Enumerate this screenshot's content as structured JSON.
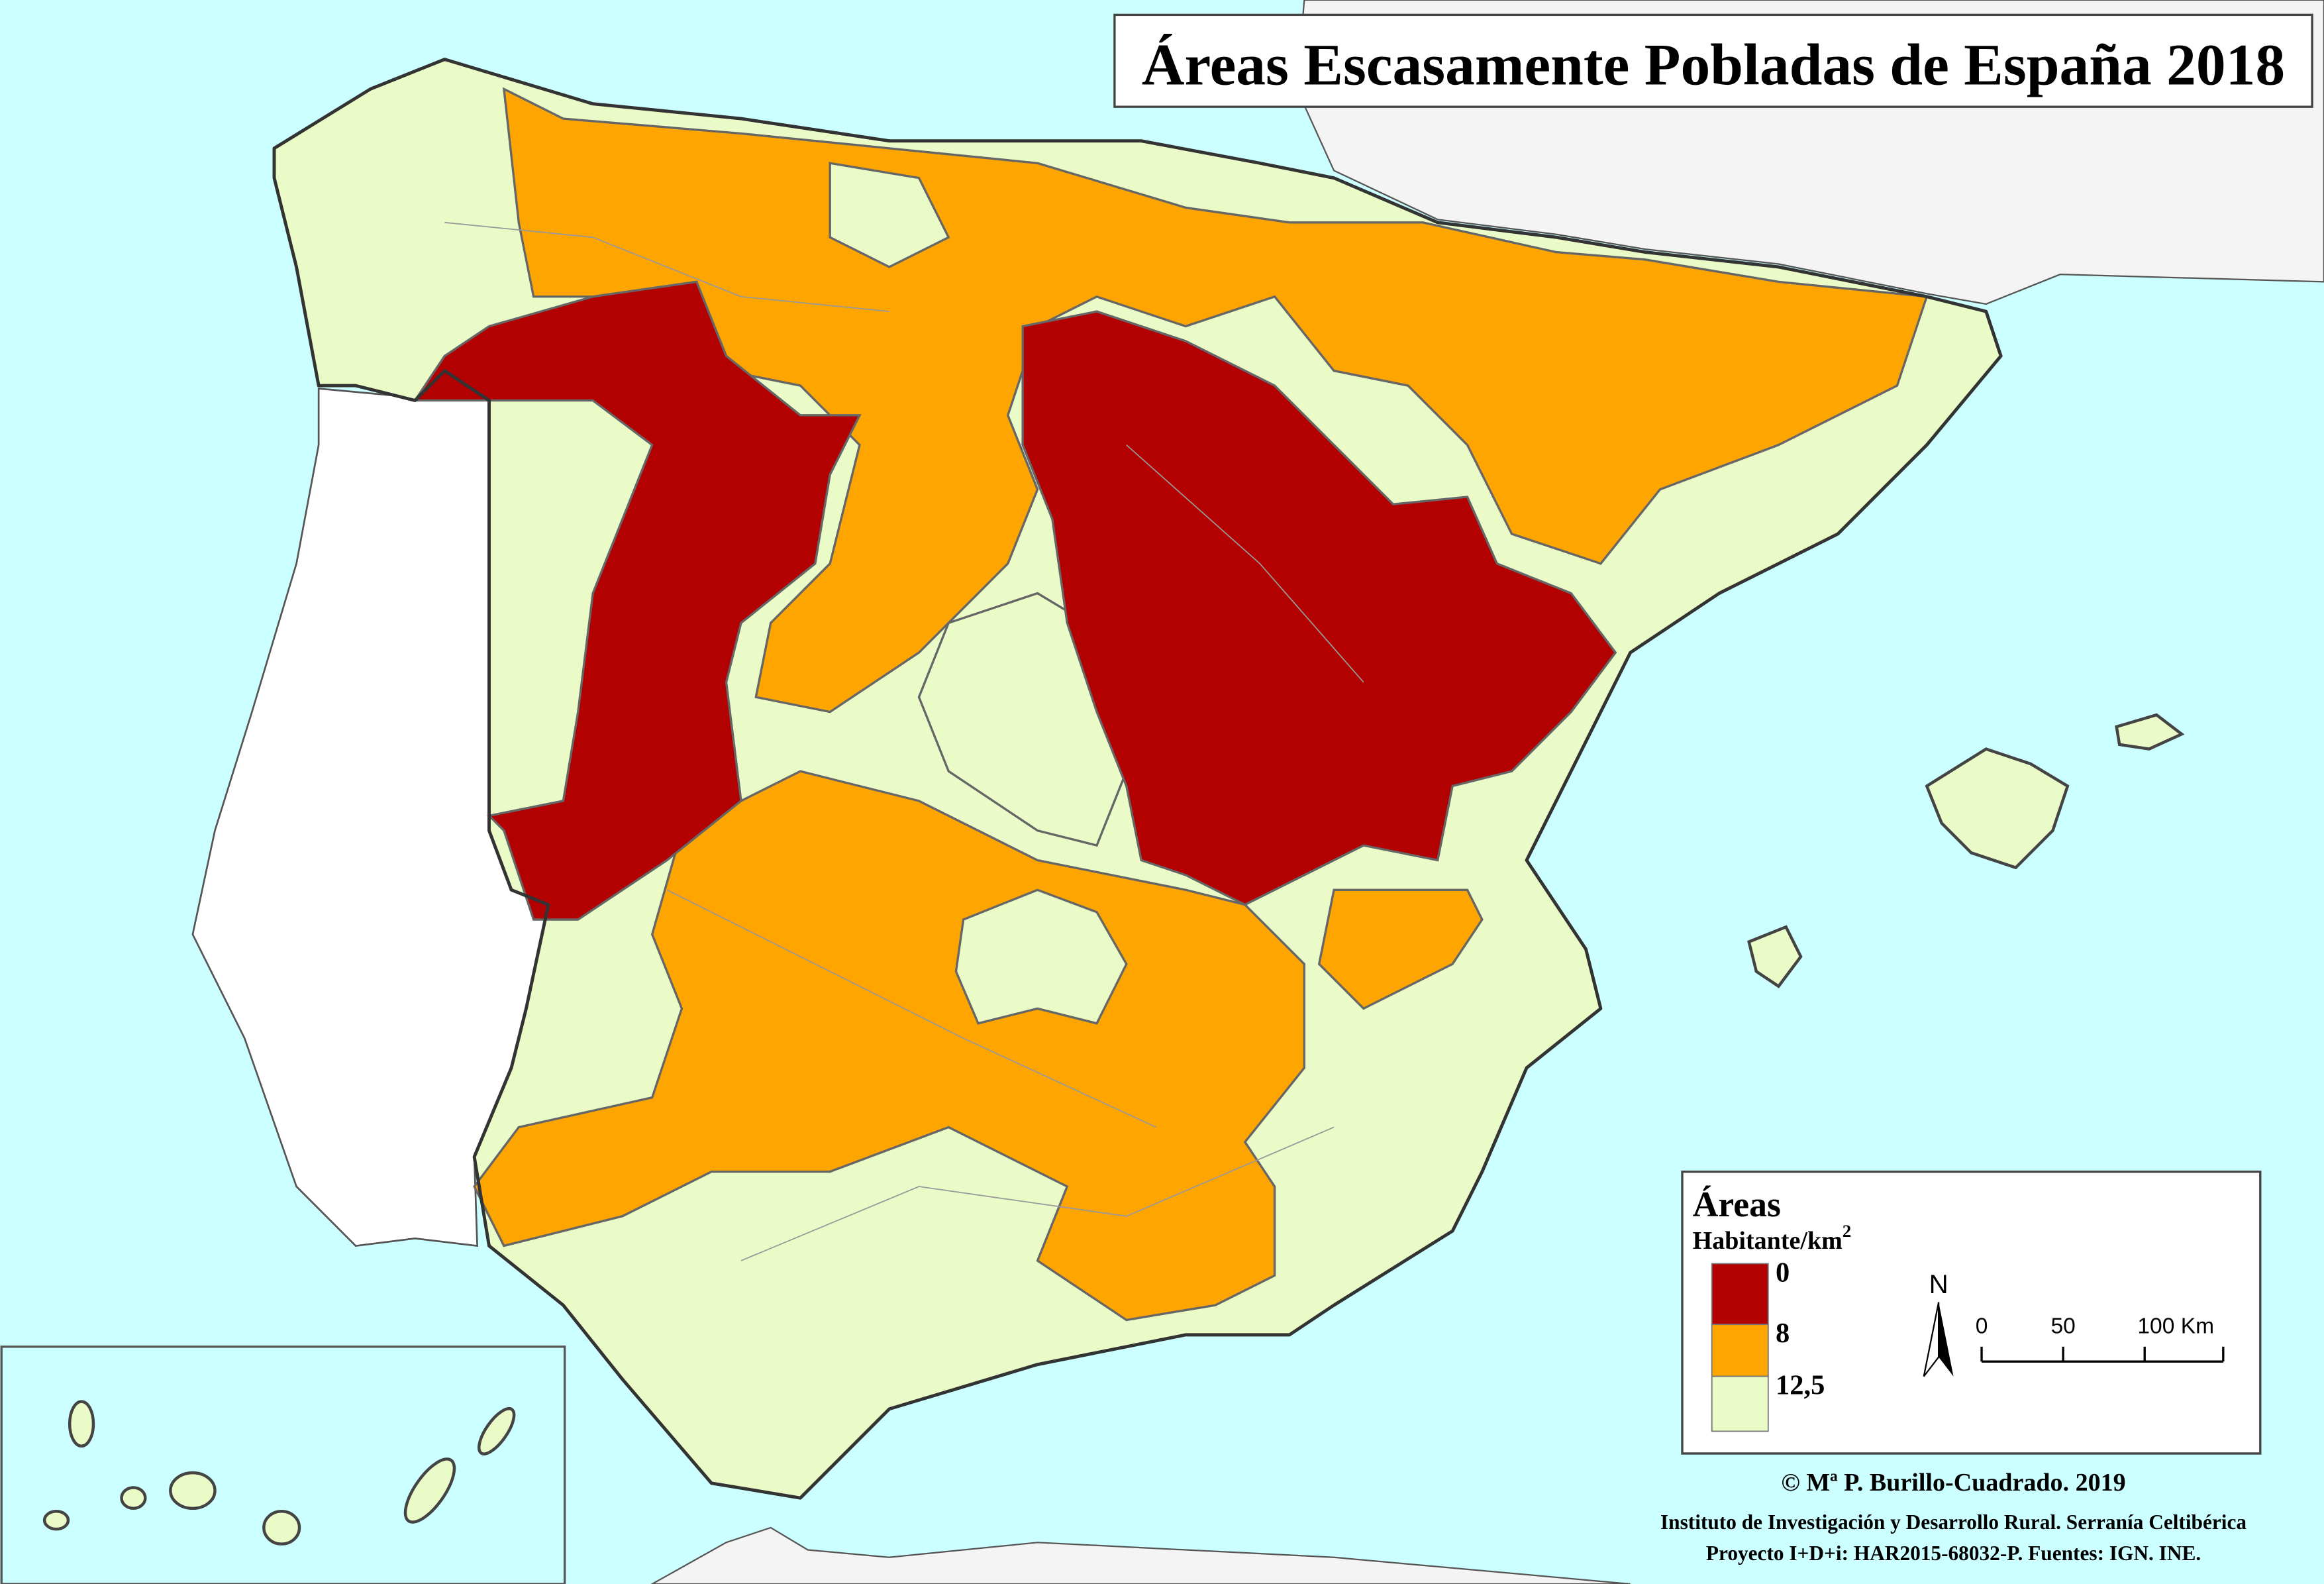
{
  "title": "Áreas Escasamente Pobladas de España 2018",
  "legend": {
    "title": "Áreas",
    "unit": "Habitante/km",
    "unit_exponent": "2",
    "breaks": [
      "0",
      "8",
      "12,5"
    ],
    "colors": [
      "#b30000",
      "#ffa500",
      "#ebfbc8"
    ]
  },
  "north": "N",
  "scale": {
    "labels": [
      "0",
      "50",
      "100 Km"
    ]
  },
  "credits": [
    "© Mª P. Burillo-Cuadrado. 2019",
    "Instituto de Investigación y Desarrollo Rural. Serranía Celtibérica",
    "Proyecto I+D+i: HAR2015-68032-P. Fuentes: IGN. INE."
  ]
}
